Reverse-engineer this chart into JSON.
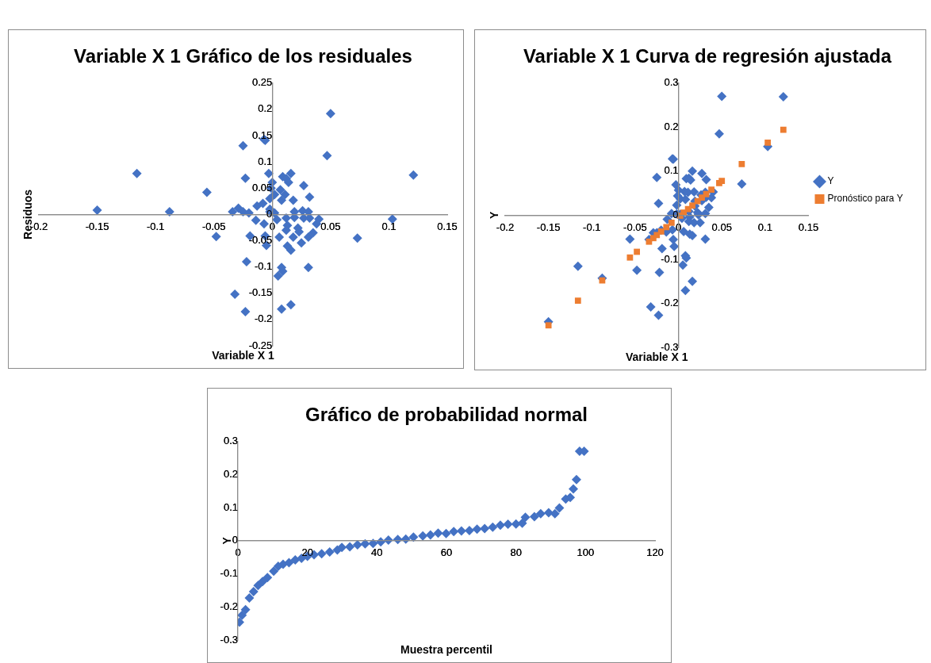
{
  "chart_data": [
    {
      "type": "scatter",
      "title": "Variable X 1 Gráfico de los residuales",
      "xlabel": "Variable X 1",
      "ylabel": "Residuos",
      "marker": "diamond",
      "xlim": [
        -0.2,
        0.15
      ],
      "ylim": [
        -0.25,
        0.25
      ],
      "xticks": [
        -0.2,
        -0.15,
        -0.1,
        -0.05,
        0,
        0.05,
        0.1,
        0.15
      ],
      "yticks": [
        -0.25,
        -0.2,
        -0.15,
        -0.1,
        -0.05,
        0,
        0.05,
        0.1,
        0.15,
        0.2,
        0.25
      ],
      "series": [
        {
          "color": "#4472c4",
          "x": [
            -0.15,
            -0.116,
            -0.088,
            -0.056,
            -0.048,
            -0.034,
            -0.029,
            -0.025,
            -0.023,
            -0.025,
            -0.02,
            -0.032,
            -0.023,
            -0.022,
            -0.019,
            -0.014,
            -0.013,
            -0.008,
            -0.007,
            -0.006,
            -0.006,
            -0.005,
            -0.003,
            -0.002,
            0.0,
            -0.001,
            -0.002,
            0.002,
            -0.002,
            -0.007,
            0.002,
            0.004,
            0.006,
            0.005,
            0.008,
            0.009,
            0.008,
            0.016,
            0.007,
            0.008,
            0.009,
            0.012,
            0.014,
            0.016,
            0.011,
            0.012,
            0.013,
            0.012,
            0.018,
            0.019,
            0.019,
            0.018,
            0.013,
            0.016,
            0.022,
            0.023,
            0.025,
            0.027,
            0.026,
            0.027,
            0.031,
            0.032,
            0.032,
            0.031,
            0.035,
            0.038,
            0.04,
            0.031,
            0.047,
            0.05,
            0.073,
            0.103,
            0.121
          ],
          "values": [
            0.008,
            0.078,
            0.005,
            0.042,
            -0.042,
            0.005,
            0.012,
            0.131,
            0.069,
            0.005,
            0.003,
            -0.152,
            -0.185,
            -0.09,
            -0.041,
            -0.011,
            0.016,
            0.021,
            0.143,
            0.141,
            -0.041,
            -0.059,
            0.078,
            0.005,
            0.061,
            0.05,
            0.03,
            0.038,
            0.01,
            -0.018,
            0.003,
            -0.01,
            -0.043,
            -0.117,
            -0.101,
            -0.108,
            -0.18,
            -0.172,
            0.047,
            0.027,
            0.072,
            0.068,
            0.061,
            0.078,
            0.038,
            -0.007,
            -0.021,
            -0.03,
            0.027,
            0.005,
            -0.006,
            -0.043,
            -0.06,
            -0.068,
            -0.026,
            -0.033,
            -0.054,
            0.055,
            0.007,
            -0.007,
            0.005,
            -0.007,
            0.033,
            -0.043,
            -0.035,
            -0.018,
            -0.009,
            -0.101,
            0.112,
            0.192,
            -0.045,
            -0.009,
            0.075
          ]
        }
      ]
    },
    {
      "type": "scatter",
      "title": "Variable X 1 Curva de regresión ajustada",
      "xlabel": "Variable X 1",
      "ylabel": "Y",
      "marker": "diamond",
      "legend": "right",
      "xlim": [
        -0.2,
        0.15
      ],
      "ylim": [
        -0.3,
        0.3
      ],
      "xticks": [
        -0.2,
        -0.15,
        -0.1,
        -0.05,
        0,
        0.05,
        0.1,
        0.15
      ],
      "yticks": [
        -0.3,
        -0.2,
        -0.1,
        0,
        0.1,
        0.2,
        0.3
      ],
      "series": [
        {
          "name": "Y",
          "color": "#4472c4",
          "x": [
            -0.15,
            -0.116,
            -0.088,
            -0.056,
            -0.048,
            -0.034,
            -0.029,
            -0.025,
            -0.023,
            -0.025,
            -0.02,
            -0.032,
            -0.023,
            -0.022,
            -0.019,
            -0.014,
            -0.013,
            -0.008,
            -0.007,
            -0.006,
            -0.006,
            -0.005,
            -0.003,
            -0.002,
            0.0,
            -0.001,
            -0.002,
            0.002,
            -0.002,
            -0.007,
            0.002,
            0.004,
            0.006,
            0.005,
            0.008,
            0.009,
            0.008,
            0.016,
            0.007,
            0.008,
            0.009,
            0.012,
            0.014,
            0.016,
            0.011,
            0.012,
            0.013,
            0.012,
            0.018,
            0.019,
            0.019,
            0.018,
            0.013,
            0.016,
            0.022,
            0.023,
            0.025,
            0.027,
            0.026,
            0.027,
            0.031,
            0.032,
            0.032,
            0.031,
            0.035,
            0.038,
            0.04,
            0.031,
            0.047,
            0.05,
            0.073,
            0.103,
            0.121
          ],
          "values": [
            -0.242,
            -0.116,
            -0.143,
            -0.054,
            -0.125,
            -0.055,
            -0.04,
            0.086,
            0.027,
            -0.04,
            -0.034,
            -0.208,
            -0.227,
            -0.13,
            -0.076,
            -0.038,
            -0.009,
            0.004,
            0.128,
            0.127,
            -0.055,
            -0.071,
            0.069,
            null,
            0.057,
            0.044,
            0.023,
            0.037,
            0.003,
            -0.033,
            0.002,
            -0.007,
            -0.037,
            -0.113,
            -0.092,
            -0.097,
            -0.171,
            -0.15,
            0.054,
            0.036,
            0.083,
            0.084,
            0.08,
            0.1,
            0.052,
            0.009,
            -0.004,
            -0.014,
            0.053,
            0.032,
            0.021,
            -0.017,
            -0.043,
            -0.046,
            0.006,
            0.001,
            -0.017,
            0.095,
            0.046,
            0.033,
            0.052,
            0.041,
            0.081,
            0.004,
            0.018,
            0.04,
            0.053,
            -0.054,
            0.185,
            0.27,
            0.071,
            0.156,
            0.269
          ]
        },
        {
          "name": "Pronóstico para Y",
          "color": "#ed7d31",
          "marker": "square",
          "x": [
            -0.15,
            -0.116,
            -0.088,
            -0.056,
            -0.048,
            -0.034,
            -0.029,
            -0.025,
            -0.02,
            -0.014,
            -0.008,
            0.002,
            0.006,
            0.011,
            0.016,
            0.022,
            0.027,
            0.032,
            0.038,
            0.047,
            0.05,
            0.073,
            0.103,
            0.121
          ],
          "values": [
            -0.25,
            -0.194,
            -0.148,
            -0.096,
            -0.083,
            -0.06,
            -0.052,
            -0.045,
            -0.037,
            -0.027,
            -0.017,
            -0.001,
            0.006,
            0.014,
            0.022,
            0.032,
            0.04,
            0.048,
            0.058,
            0.073,
            0.078,
            0.116,
            0.165,
            0.194
          ]
        }
      ]
    },
    {
      "type": "scatter",
      "title": "Gráfico de probabilidad normal",
      "xlabel": "Muestra percentil",
      "ylabel": "Y",
      "marker": "diamond",
      "xlim": [
        0,
        120
      ],
      "ylim": [
        -0.3,
        0.3
      ],
      "xticks": [
        0,
        20,
        40,
        60,
        80,
        100,
        120
      ],
      "yticks": [
        -0.3,
        -0.2,
        -0.1,
        0,
        0.1,
        0.2,
        0.3
      ],
      "series": [
        {
          "color": "#4472c4",
          "x": [
            0.45,
            1.2,
            2.2,
            3.3,
            4.5,
            5.8,
            7.1,
            8.5,
            10.3,
            11.6,
            13,
            14.7,
            16.5,
            18.3,
            20,
            21.9,
            24.1,
            26.4,
            28.6,
            29.9,
            32.2,
            34.4,
            36.6,
            38.9,
            41.1,
            43.3,
            46.0,
            48.3,
            50.5,
            53.2,
            55.4,
            57.6,
            59.9,
            62.1,
            64.3,
            66.6,
            68.8,
            71.0,
            73.3,
            75.5,
            77.7,
            80.0,
            81.8,
            82.7,
            85.3,
            87.1,
            89.4,
            91.2,
            92.5,
            94.3,
            95.6,
            96.5,
            97.4,
            98.3,
            99.6
          ],
          "values": [
            -0.246,
            -0.225,
            -0.208,
            -0.173,
            -0.154,
            -0.135,
            -0.123,
            -0.111,
            -0.092,
            -0.077,
            -0.071,
            -0.066,
            -0.058,
            -0.053,
            -0.047,
            -0.042,
            -0.039,
            -0.034,
            -0.028,
            -0.02,
            -0.018,
            -0.012,
            -0.009,
            -0.008,
            -0.003,
            0.002,
            0.004,
            0.005,
            0.011,
            0.015,
            0.018,
            0.023,
            0.022,
            0.028,
            0.03,
            0.031,
            0.035,
            0.037,
            0.041,
            0.047,
            0.05,
            0.051,
            0.053,
            0.071,
            0.073,
            0.082,
            0.085,
            0.082,
            0.099,
            0.126,
            0.131,
            0.157,
            0.185,
            0.271,
            0.271
          ]
        }
      ]
    }
  ]
}
